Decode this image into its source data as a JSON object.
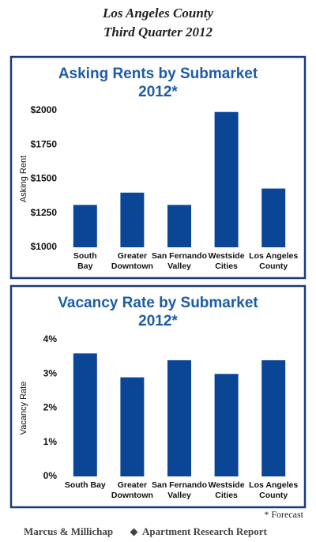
{
  "header": {
    "title": "Los Angeles County",
    "subtitle": "Third Quarter 2012"
  },
  "chart_data": [
    {
      "type": "bar",
      "title": "Asking Rents by Submarket",
      "subtitle": "2012*",
      "y_label": "Asking Rent",
      "categories": [
        [
          "South",
          "Bay"
        ],
        [
          "Greater",
          "Downtown"
        ],
        [
          "San Fernando",
          "Valley"
        ],
        [
          "Westside",
          "Cities"
        ],
        [
          "Los Angeles",
          "County"
        ]
      ],
      "values": [
        1310,
        1400,
        1310,
        1990,
        1430
      ],
      "color": "#0b4595",
      "ylim": [
        1000,
        2000
      ],
      "yticks": [
        {
          "value": 1000,
          "label": "$1000"
        },
        {
          "value": 1250,
          "label": "$1250"
        },
        {
          "value": 1500,
          "label": "$1500"
        },
        {
          "value": 1750,
          "label": "$1750"
        },
        {
          "value": 2000,
          "label": "$2000"
        }
      ],
      "grid": false
    },
    {
      "type": "bar",
      "title": "Vacancy Rate by Submarket",
      "subtitle": "2012*",
      "y_label": "Vacancy Rate",
      "categories": [
        [
          "South Bay"
        ],
        [
          "Greater",
          "Downtown"
        ],
        [
          "San Fernando",
          "Valley"
        ],
        [
          "Westside",
          "Cities"
        ],
        [
          "Los Angeles",
          "County"
        ]
      ],
      "values": [
        3.6,
        2.9,
        3.4,
        3.0,
        3.4
      ],
      "color": "#0b4595",
      "ylim": [
        0,
        4
      ],
      "yticks": [
        {
          "value": 0,
          "label": "0%"
        },
        {
          "value": 1,
          "label": "1%"
        },
        {
          "value": 2,
          "label": "2%"
        },
        {
          "value": 3,
          "label": "3%"
        },
        {
          "value": 4,
          "label": "4%"
        }
      ],
      "grid": false
    }
  ],
  "footer": {
    "note": "* Forecast",
    "brand": "Marcus & Millichap",
    "report": "Apartment Research Report"
  }
}
